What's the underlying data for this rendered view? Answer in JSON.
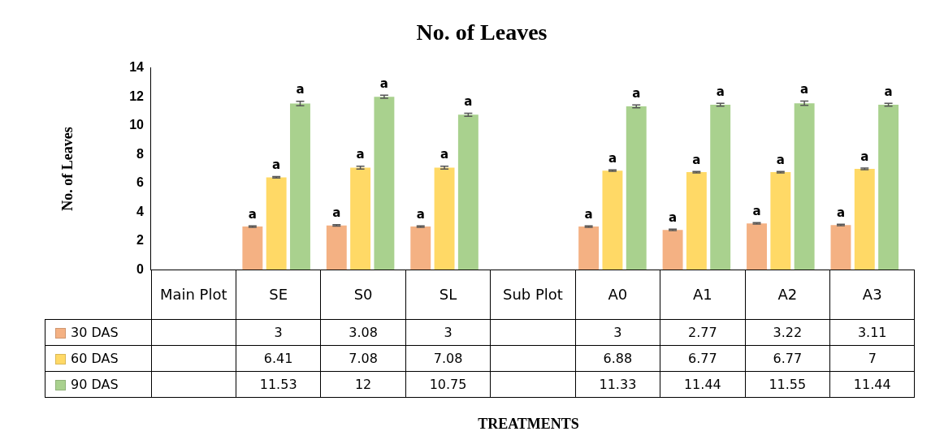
{
  "chart_data": {
    "type": "bar",
    "title": "No. of Leaves",
    "ylabel": "No. of Leaves",
    "categories": [
      "Main Plot",
      "SE",
      "S0",
      "SL",
      "Sub Plot",
      "A0",
      "A1",
      "A2",
      "A3"
    ],
    "series": [
      {
        "name": "30 DAS",
        "color": "#f4b183",
        "values": [
          null,
          3,
          3.08,
          3,
          null,
          3,
          2.77,
          3.22,
          3.11
        ],
        "errors": [
          null,
          0.05,
          0.05,
          0.05,
          null,
          0.05,
          0.05,
          0.05,
          0.05
        ]
      },
      {
        "name": "60 DAS",
        "color": "#ffd966",
        "values": [
          null,
          6.41,
          7.08,
          7.08,
          null,
          6.88,
          6.77,
          6.77,
          7
        ],
        "errors": [
          null,
          0.05,
          0.1,
          0.1,
          null,
          0.05,
          0.05,
          0.05,
          0.05
        ]
      },
      {
        "name": "90 DAS",
        "color": "#a9d18e",
        "values": [
          null,
          11.53,
          12,
          10.75,
          null,
          11.33,
          11.44,
          11.55,
          11.44
        ],
        "errors": [
          null,
          0.15,
          0.1,
          0.1,
          null,
          0.1,
          0.1,
          0.15,
          0.1
        ]
      }
    ],
    "ylim": [
      0,
      14
    ],
    "yticks": [
      0,
      2,
      4,
      6,
      8,
      10,
      12,
      14
    ],
    "grid": false,
    "legend": "bottom left",
    "data_labels": true,
    "annotations": [
      "a",
      "a",
      "a",
      "a",
      "a",
      "a",
      "a",
      "a",
      "a",
      "a",
      "a",
      "a",
      "a",
      "a",
      "a",
      "a",
      "a",
      "a",
      "a",
      "a",
      "a",
      "TREATMENTS"
    ]
  }
}
